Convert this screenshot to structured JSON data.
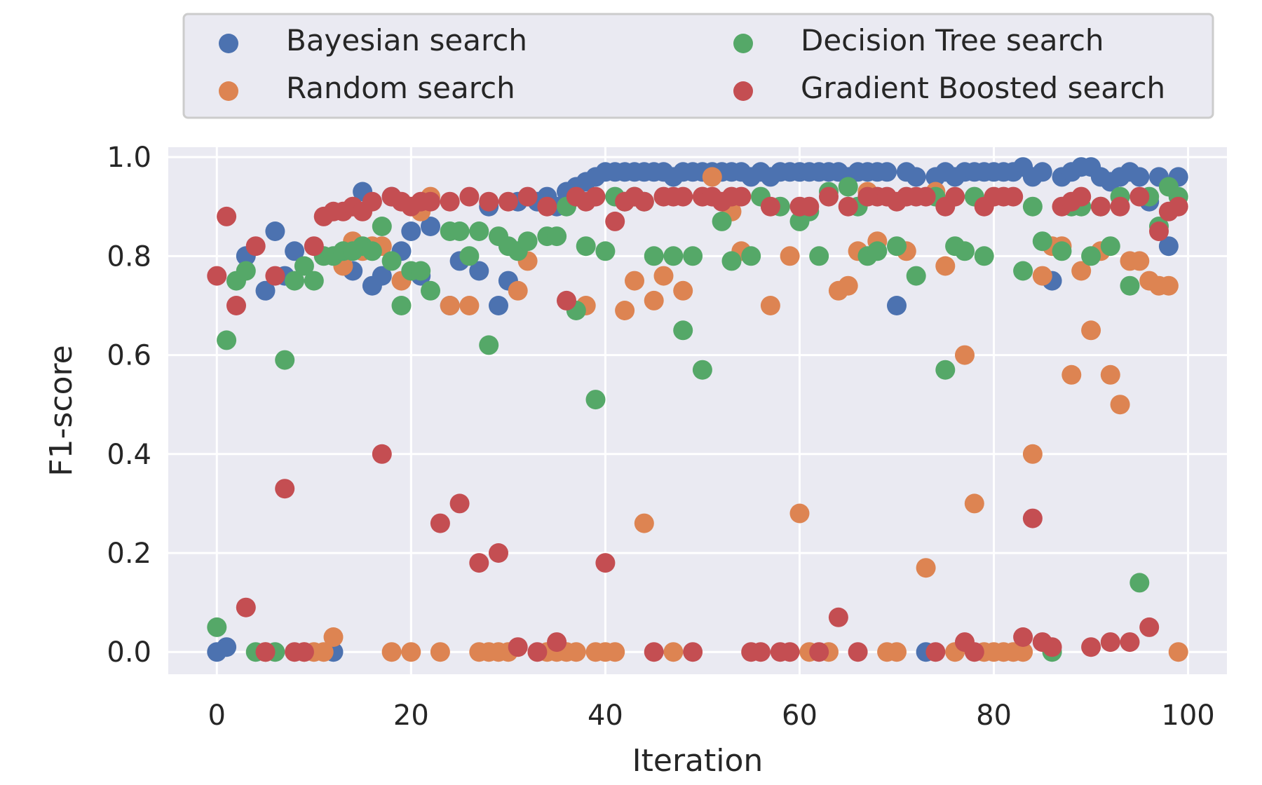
{
  "chart_data": {
    "type": "scatter",
    "xlabel": "Iteration",
    "ylabel": "F1-score",
    "xlim": [
      -5,
      104
    ],
    "ylim": [
      -0.045,
      1.02
    ],
    "xticks": [
      0,
      20,
      40,
      60,
      80,
      100
    ],
    "yticks": [
      0.0,
      0.2,
      0.4,
      0.6,
      0.8,
      1.0
    ],
    "xtick_labels": [
      "0",
      "20",
      "40",
      "60",
      "80",
      "100"
    ],
    "ytick_labels": [
      "0.0",
      "0.2",
      "0.4",
      "0.6",
      "0.8",
      "1.0"
    ],
    "grid": true,
    "legend_placement": "top, outside plot, two columns",
    "background_color": "#eaeaf2",
    "series": [
      {
        "name": "Bayesian search",
        "color": "#4c72b0",
        "x": [
          0,
          1,
          3,
          5,
          6,
          7,
          8,
          12,
          14,
          15,
          16,
          17,
          18,
          19,
          20,
          21,
          22,
          24,
          25,
          27,
          28,
          29,
          30,
          31,
          33,
          34,
          35,
          36,
          37,
          38,
          39,
          40,
          41,
          42,
          43,
          44,
          45,
          46,
          47,
          48,
          49,
          50,
          51,
          52,
          53,
          54,
          55,
          56,
          57,
          58,
          59,
          60,
          61,
          62,
          63,
          64,
          65,
          66,
          67,
          68,
          69,
          70,
          71,
          72,
          73,
          74,
          75,
          76,
          77,
          78,
          79,
          80,
          81,
          82,
          83,
          84,
          85,
          86,
          87,
          88,
          89,
          90,
          91,
          92,
          93,
          94,
          95,
          96,
          97,
          98,
          99
        ],
        "y": [
          0.0,
          0.01,
          0.8,
          0.73,
          0.85,
          0.76,
          0.81,
          0.0,
          0.77,
          0.93,
          0.74,
          0.76,
          0.92,
          0.81,
          0.85,
          0.76,
          0.86,
          0.7,
          0.79,
          0.77,
          0.9,
          0.7,
          0.75,
          0.91,
          0.91,
          0.92,
          0.9,
          0.93,
          0.94,
          0.95,
          0.96,
          0.97,
          0.97,
          0.97,
          0.97,
          0.97,
          0.97,
          0.97,
          0.96,
          0.97,
          0.97,
          0.97,
          0.97,
          0.97,
          0.97,
          0.97,
          0.96,
          0.97,
          0.96,
          0.97,
          0.97,
          0.97,
          0.97,
          0.97,
          0.97,
          0.97,
          0.96,
          0.97,
          0.97,
          0.97,
          0.97,
          0.7,
          0.97,
          0.96,
          0.0,
          0.96,
          0.97,
          0.96,
          0.97,
          0.97,
          0.97,
          0.97,
          0.97,
          0.97,
          0.98,
          0.96,
          0.97,
          0.75,
          0.96,
          0.97,
          0.98,
          0.98,
          0.96,
          0.95,
          0.96,
          0.97,
          0.96,
          0.91,
          0.96,
          0.82,
          0.96
        ]
      },
      {
        "name": "Random search",
        "color": "#dd8452",
        "x": [
          5,
          9,
          10,
          11,
          12,
          13,
          14,
          15,
          16,
          17,
          18,
          19,
          20,
          21,
          22,
          23,
          24,
          26,
          27,
          28,
          29,
          30,
          31,
          32,
          34,
          35,
          36,
          37,
          38,
          39,
          40,
          41,
          42,
          43,
          44,
          45,
          46,
          47,
          48,
          50,
          51,
          53,
          54,
          57,
          59,
          60,
          61,
          63,
          64,
          65,
          66,
          67,
          68,
          69,
          70,
          71,
          73,
          74,
          75,
          76,
          77,
          78,
          79,
          80,
          81,
          82,
          83,
          84,
          85,
          86,
          87,
          88,
          89,
          90,
          91,
          92,
          93,
          94,
          95,
          96,
          97,
          98,
          99
        ],
        "y": [
          0.0,
          0.0,
          0.0,
          0.0,
          0.03,
          0.78,
          0.83,
          0.81,
          0.82,
          0.82,
          0.0,
          0.75,
          0.0,
          0.89,
          0.92,
          0.0,
          0.7,
          0.7,
          0.0,
          0.0,
          0.0,
          0.0,
          0.73,
          0.79,
          0.0,
          0.0,
          0.0,
          0.0,
          0.7,
          0.0,
          0.0,
          0.0,
          0.69,
          0.75,
          0.26,
          0.71,
          0.76,
          0.0,
          0.73,
          0.92,
          0.96,
          0.89,
          0.81,
          0.7,
          0.8,
          0.28,
          0.0,
          0.0,
          0.73,
          0.74,
          0.81,
          0.93,
          0.83,
          0.0,
          0.0,
          0.81,
          0.17,
          0.93,
          0.78,
          0.0,
          0.6,
          0.3,
          0.0,
          0.0,
          0.0,
          0.0,
          0.0,
          0.4,
          0.76,
          0.82,
          0.82,
          0.56,
          0.77,
          0.65,
          0.81,
          0.56,
          0.5,
          0.79,
          0.79,
          0.75,
          0.74,
          0.74,
          0.0
        ]
      },
      {
        "name": "Decision Tree search",
        "color": "#55a868",
        "x": [
          0,
          1,
          2,
          3,
          4,
          6,
          7,
          8,
          9,
          10,
          11,
          12,
          13,
          14,
          15,
          16,
          17,
          18,
          19,
          20,
          21,
          22,
          24,
          25,
          26,
          27,
          28,
          29,
          30,
          31,
          32,
          34,
          35,
          36,
          37,
          38,
          39,
          40,
          41,
          42,
          43,
          44,
          45,
          47,
          48,
          49,
          50,
          52,
          53,
          55,
          56,
          58,
          60,
          61,
          62,
          63,
          65,
          66,
          67,
          68,
          70,
          72,
          74,
          75,
          76,
          77,
          78,
          79,
          83,
          84,
          85,
          86,
          87,
          88,
          89,
          90,
          91,
          92,
          93,
          94,
          95,
          96,
          97,
          98,
          99
        ],
        "y": [
          0.05,
          0.63,
          0.75,
          0.77,
          0.0,
          0.0,
          0.59,
          0.75,
          0.78,
          0.75,
          0.8,
          0.8,
          0.81,
          0.81,
          0.82,
          0.81,
          0.86,
          0.79,
          0.7,
          0.77,
          0.77,
          0.73,
          0.85,
          0.85,
          0.8,
          0.85,
          0.62,
          0.84,
          0.82,
          0.81,
          0.83,
          0.84,
          0.84,
          0.9,
          0.69,
          0.82,
          0.51,
          0.81,
          0.92,
          0.91,
          0.92,
          0.91,
          0.8,
          0.8,
          0.65,
          0.8,
          0.57,
          0.87,
          0.79,
          0.8,
          0.92,
          0.9,
          0.87,
          0.89,
          0.8,
          0.93,
          0.94,
          0.9,
          0.8,
          0.81,
          0.82,
          0.76,
          0.92,
          0.57,
          0.82,
          0.81,
          0.92,
          0.8,
          0.77,
          0.9,
          0.83,
          0.0,
          0.81,
          0.9,
          0.9,
          0.8,
          0.9,
          0.82,
          0.92,
          0.74,
          0.14,
          0.92,
          0.86,
          0.94,
          0.92
        ]
      },
      {
        "name": "Gradient Boosted search",
        "color": "#c44e52",
        "x": [
          0,
          1,
          2,
          3,
          4,
          5,
          6,
          7,
          8,
          9,
          10,
          11,
          12,
          13,
          14,
          15,
          16,
          17,
          18,
          19,
          20,
          21,
          22,
          23,
          24,
          25,
          26,
          27,
          28,
          29,
          30,
          31,
          32,
          33,
          34,
          35,
          36,
          37,
          38,
          39,
          40,
          41,
          42,
          43,
          44,
          45,
          46,
          47,
          48,
          49,
          50,
          51,
          52,
          53,
          54,
          55,
          56,
          57,
          58,
          59,
          60,
          61,
          62,
          63,
          64,
          65,
          66,
          67,
          68,
          69,
          70,
          71,
          72,
          73,
          74,
          75,
          76,
          77,
          78,
          79,
          80,
          81,
          82,
          83,
          84,
          85,
          86,
          87,
          88,
          89,
          90,
          91,
          92,
          93,
          94,
          95,
          96,
          97,
          98,
          99
        ],
        "y": [
          0.76,
          0.88,
          0.7,
          0.09,
          0.82,
          0.0,
          0.76,
          0.33,
          0.0,
          0.0,
          0.82,
          0.88,
          0.89,
          0.89,
          0.9,
          0.89,
          0.91,
          0.4,
          0.92,
          0.91,
          0.9,
          0.91,
          0.91,
          0.26,
          0.91,
          0.3,
          0.92,
          0.18,
          0.91,
          0.2,
          0.91,
          0.01,
          0.92,
          0.0,
          0.9,
          0.02,
          0.71,
          0.92,
          0.91,
          0.92,
          0.18,
          0.87,
          0.91,
          0.92,
          0.91,
          0.0,
          0.92,
          0.92,
          0.92,
          0.0,
          0.92,
          0.92,
          0.91,
          0.92,
          0.92,
          0.0,
          0.0,
          0.9,
          0.0,
          0.0,
          0.9,
          0.9,
          0.0,
          0.92,
          0.07,
          0.9,
          0.0,
          0.92,
          0.92,
          0.92,
          0.91,
          0.92,
          0.92,
          0.92,
          0.0,
          0.9,
          0.92,
          0.02,
          0.0,
          0.9,
          0.92,
          0.92,
          0.92,
          0.03,
          0.27,
          0.02,
          0.01,
          0.9,
          0.91,
          0.92,
          0.01,
          0.9,
          0.02,
          0.9,
          0.02,
          0.92,
          0.05,
          0.85,
          0.89,
          0.9
        ]
      }
    ]
  }
}
